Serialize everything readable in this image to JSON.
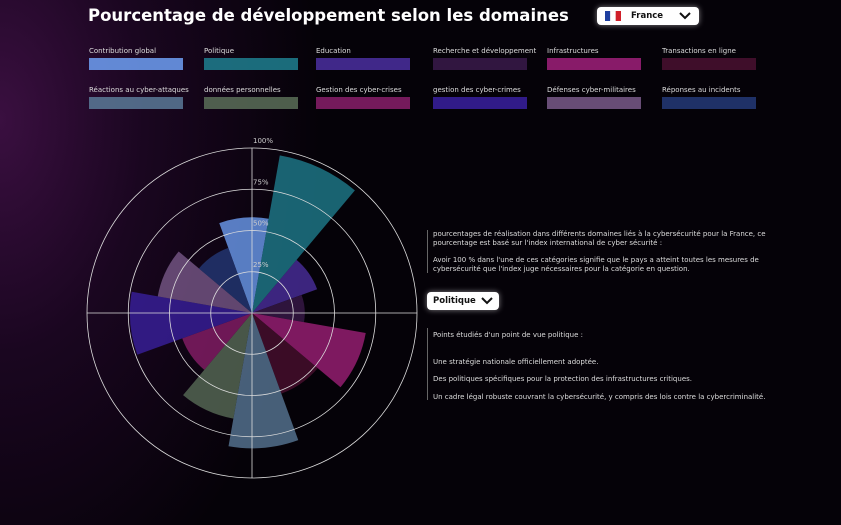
{
  "header": {
    "title": "Pourcentage de développement selon les domaines",
    "country": "France"
  },
  "chart_data": {
    "type": "polar",
    "categories": [
      "Contribution global",
      "Politique",
      "Education",
      "Recherche et développement",
      "Infrastructures",
      "Transactions en ligne",
      "Réactions au cyber-attaques",
      "données personnelles",
      "Gestion des cyber-crises",
      "gestion des cyber-crimes",
      "Défenses cyber-militaires",
      "Réponses au incidents"
    ],
    "values": [
      58,
      97,
      42,
      32,
      70,
      52,
      82,
      65,
      45,
      74,
      58,
      42
    ],
    "colors": [
      "#6ea0f5",
      "#1f7f8f",
      "#4b2fa0",
      "#3a1a4a",
      "#a0207a",
      "#4a1030",
      "#5a7a98",
      "#5a6e58",
      "#8a1f6a",
      "#3a20a0",
      "#7a5a8a",
      "#243a78"
    ],
    "rlim": [
      0,
      100
    ],
    "rticks": [
      {
        "value": 25,
        "label": "25%"
      },
      {
        "value": 50,
        "label": "50%"
      },
      {
        "value": 75,
        "label": "75%"
      },
      {
        "value": 100,
        "label": "100%"
      }
    ]
  },
  "description": {
    "paragraphs": [
      "pourcentages de réalisation dans différents domaines liés à la cybersécurité pour la France, ce pourcentage est basé sur l'index international de cyber sécurité :",
      "Avoir 100 % dans l'une de ces catégories signifie que le pays a atteint toutes les mesures de cybersécurité que l'index juge nécessaires pour la catégorie en question."
    ]
  },
  "domain_select": "Politique",
  "points": {
    "heading": "Points étudiés d'un point de vue politique :",
    "items": [
      "Une stratégie nationale officiellement adoptée.",
      "Des politiques spécifiques pour la protection des infrastructures critiques.",
      "Un cadre légal robuste couvrant la cybersécurité, y compris des lois contre la cybercriminalité."
    ]
  }
}
